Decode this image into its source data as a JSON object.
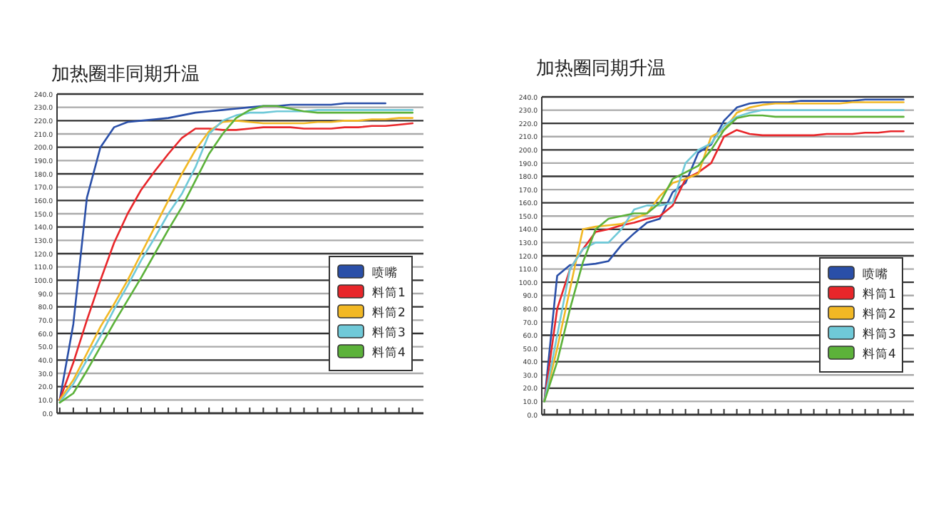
{
  "chart_data": [
    {
      "type": "line",
      "title": "加热圈非同期升温",
      "categories": [
        null,
        null,
        null,
        null,
        null,
        null,
        null,
        null,
        null,
        null,
        null,
        null,
        null,
        null,
        null,
        null,
        null,
        null,
        null,
        null,
        null,
        null,
        null,
        null,
        null,
        null,
        null
      ],
      "ylim": [
        0,
        240
      ],
      "yticks": [
        {
          "value": 0,
          "label": "0.0"
        },
        {
          "value": 10,
          "label": "10.0"
        },
        {
          "value": 20,
          "label": "20.0"
        },
        {
          "value": 30,
          "label": "30.0"
        },
        {
          "value": 40,
          "label": "40.0"
        },
        {
          "value": 50,
          "label": "50.0"
        },
        {
          "value": 60,
          "label": "60.0"
        },
        {
          "value": 70,
          "label": "70.0"
        },
        {
          "value": 80,
          "label": "80.0"
        },
        {
          "value": 90,
          "label": "90.0"
        },
        {
          "value": 100,
          "label": "100.0"
        },
        {
          "value": 110,
          "label": "110.0"
        },
        {
          "value": 120,
          "label": "120.0"
        },
        {
          "value": 130,
          "label": "130.0"
        },
        {
          "value": 140,
          "label": "140.0"
        },
        {
          "value": 150,
          "label": "150.0"
        },
        {
          "value": 160,
          "label": "160.0"
        },
        {
          "value": 170,
          "label": "170.0"
        },
        {
          "value": 180,
          "label": "180.0"
        },
        {
          "value": 190,
          "label": "190.0"
        },
        {
          "value": 200,
          "label": "200.0"
        },
        {
          "value": 210,
          "label": "210.0"
        },
        {
          "value": 220,
          "label": "220.0"
        },
        {
          "value": 230,
          "label": "230.0"
        },
        {
          "value": 240,
          "label": "240.0"
        }
      ],
      "grid": "y",
      "legend": "bottom right",
      "series": [
        {
          "name": "喷嘴",
          "color": "#2a4fa8",
          "values": [
            10,
            67,
            162,
            200,
            215,
            219,
            220,
            221,
            222,
            224,
            226,
            227,
            228,
            229,
            230,
            231,
            231,
            232,
            232,
            232,
            232,
            233,
            233,
            233,
            233,
            null,
            null
          ]
        },
        {
          "name": "料筒1",
          "color": "#e8262a",
          "values": [
            10,
            38,
            70,
            100,
            128,
            150,
            168,
            182,
            195,
            207,
            214,
            214,
            213,
            213,
            214,
            215,
            215,
            215,
            214,
            214,
            214,
            215,
            215,
            216,
            216,
            217,
            218
          ]
        },
        {
          "name": "料筒2",
          "color": "#f2b824",
          "values": [
            10,
            25,
            45,
            65,
            82,
            100,
            120,
            140,
            160,
            180,
            198,
            212,
            219,
            220,
            219,
            218,
            218,
            218,
            218,
            219,
            219,
            220,
            220,
            221,
            221,
            222,
            222
          ]
        },
        {
          "name": "料筒3",
          "color": "#6fc9d8",
          "values": [
            8,
            22,
            40,
            58,
            78,
            96,
            115,
            132,
            150,
            165,
            185,
            210,
            220,
            224,
            226,
            226,
            227,
            227,
            227,
            228,
            228,
            228,
            228,
            228,
            228,
            228,
            228
          ]
        },
        {
          "name": "料筒4",
          "color": "#5cb23a",
          "values": [
            8,
            15,
            32,
            50,
            68,
            85,
            102,
            120,
            138,
            155,
            175,
            195,
            210,
            222,
            228,
            231,
            231,
            229,
            227,
            226,
            226,
            226,
            226,
            226,
            226,
            226,
            226
          ]
        }
      ]
    },
    {
      "type": "line",
      "title": "加热圈同期升温",
      "categories": [
        null,
        null,
        null,
        null,
        null,
        null,
        null,
        null,
        null,
        null,
        null,
        null,
        null,
        null,
        null,
        null,
        null,
        null,
        null,
        null,
        null,
        null,
        null,
        null,
        null,
        null,
        null,
        null,
        null
      ],
      "ylim": [
        0,
        240
      ],
      "yticks": [
        {
          "value": 0,
          "label": "0.0"
        },
        {
          "value": 10,
          "label": "10.0"
        },
        {
          "value": 20,
          "label": "20.0"
        },
        {
          "value": 30,
          "label": "30.0"
        },
        {
          "value": 40,
          "label": "40.0"
        },
        {
          "value": 50,
          "label": "50.0"
        },
        {
          "value": 60,
          "label": "60.0"
        },
        {
          "value": 70,
          "label": "70.0"
        },
        {
          "value": 80,
          "label": "80.0"
        },
        {
          "value": 90,
          "label": "90.0"
        },
        {
          "value": 100,
          "label": "100.0"
        },
        {
          "value": 110,
          "label": "110.0"
        },
        {
          "value": 120,
          "label": "120.0"
        },
        {
          "value": 130,
          "label": "130.0"
        },
        {
          "value": 140,
          "label": "140.0"
        },
        {
          "value": 150,
          "label": "150.0"
        },
        {
          "value": 160,
          "label": "160.0"
        },
        {
          "value": 170,
          "label": "170.0"
        },
        {
          "value": 180,
          "label": "180.0"
        },
        {
          "value": 190,
          "label": "190.0"
        },
        {
          "value": 200,
          "label": "200.0"
        },
        {
          "value": 210,
          "label": "210.0"
        },
        {
          "value": 220,
          "label": "220.0"
        },
        {
          "value": 230,
          "label": "230.0"
        },
        {
          "value": 240,
          "label": "240.0"
        }
      ],
      "grid": "y",
      "legend": "bottom right",
      "series": [
        {
          "name": "喷嘴",
          "color": "#2a4fa8",
          "values": [
            10,
            105,
            113,
            113,
            114,
            116,
            128,
            137,
            145,
            148,
            168,
            175,
            198,
            204,
            222,
            232,
            235,
            236,
            236,
            236,
            237,
            237,
            237,
            237,
            237,
            238,
            238,
            238,
            238
          ]
        },
        {
          "name": "料筒1",
          "color": "#e8262a",
          "values": [
            10,
            80,
            110,
            125,
            138,
            140,
            143,
            145,
            148,
            150,
            158,
            178,
            183,
            190,
            210,
            215,
            212,
            211,
            211,
            211,
            211,
            211,
            212,
            212,
            212,
            213,
            213,
            214,
            214
          ]
        },
        {
          "name": "料筒2",
          "color": "#f2b824",
          "values": [
            10,
            50,
            95,
            140,
            142,
            143,
            144,
            148,
            152,
            165,
            175,
            178,
            182,
            210,
            215,
            228,
            232,
            234,
            235,
            235,
            235,
            235,
            235,
            235,
            236,
            236,
            236,
            236,
            236
          ]
        },
        {
          "name": "料筒3",
          "color": "#6fc9d8",
          "values": [
            10,
            60,
            110,
            125,
            130,
            130,
            140,
            155,
            158,
            158,
            160,
            190,
            200,
            205,
            218,
            225,
            228,
            230,
            230,
            230,
            230,
            230,
            230,
            230,
            230,
            230,
            230,
            230,
            230
          ]
        },
        {
          "name": "料筒4",
          "color": "#5cb23a",
          "values": [
            10,
            40,
            80,
            115,
            140,
            148,
            150,
            152,
            152,
            160,
            178,
            183,
            188,
            200,
            215,
            224,
            226,
            226,
            225,
            225,
            225,
            225,
            225,
            225,
            225,
            225,
            225,
            225,
            225
          ]
        }
      ]
    }
  ]
}
